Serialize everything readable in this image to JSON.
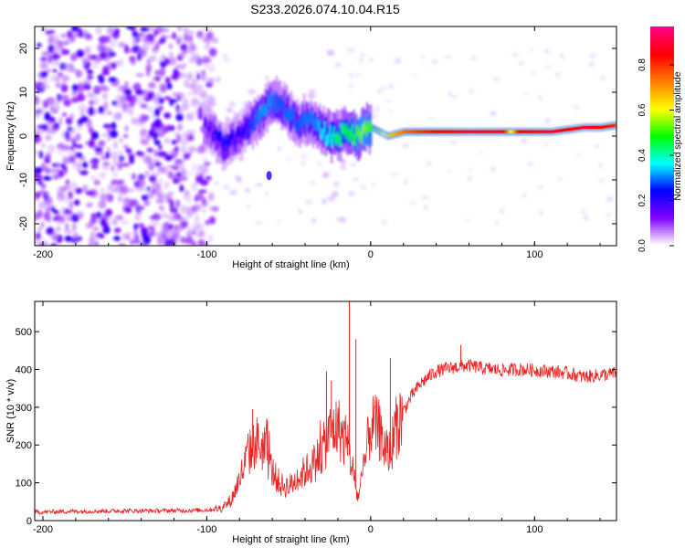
{
  "title": "S233.2026.074.10.04.R15",
  "chart_data": [
    {
      "type": "heatmap",
      "title": "S233.2026.074.10.04.R15",
      "xlabel": "Height of straight line (km)",
      "ylabel": "Frequency (Hz)",
      "xlim": [
        -205,
        150
      ],
      "ylim": [
        -25,
        25
      ],
      "xticks": [
        -200,
        -100,
        0,
        100
      ],
      "yticks": [
        -20,
        -10,
        0,
        10,
        20
      ],
      "xtick_labels": [
        "-200",
        "-100",
        "0",
        "100"
      ],
      "ytick_labels": [
        "-20",
        "-10",
        "0",
        "10",
        "20"
      ],
      "colorbar": {
        "label": "Normalized spectral amplitude",
        "range": [
          0,
          0.97
        ],
        "ticks": [
          0,
          0.2,
          0.4,
          0.6,
          0.8
        ],
        "tick_labels": [
          "0.0",
          "0.2",
          "0.4",
          "0.6",
          "0.8"
        ],
        "colors": [
          "#ffffff",
          "#8000ff",
          "#0000ff",
          "#00ffff",
          "#00ff00",
          "#ffff00",
          "#ff8000",
          "#ff0000",
          "#ff0080"
        ]
      },
      "ridge": {
        "x": [
          -100,
          -95,
          -90,
          -85,
          -80,
          -75,
          -70,
          -65,
          -60,
          -55,
          -50,
          -45,
          -40,
          -35,
          -30,
          -25,
          -20,
          -15,
          -10,
          -5,
          0,
          5,
          10,
          20,
          40,
          60,
          80,
          85,
          90,
          100,
          110,
          120,
          130,
          140,
          150
        ],
        "freq": [
          2,
          0,
          -2,
          -1,
          0,
          2,
          4,
          6,
          8,
          7,
          5,
          3,
          4,
          3,
          1,
          0,
          0,
          1,
          0,
          1,
          2,
          1,
          0,
          1,
          1,
          1,
          1,
          1,
          1,
          1,
          1,
          1.5,
          2,
          2,
          2.5
        ],
        "amplitude": [
          0.15,
          0.2,
          0.25,
          0.22,
          0.2,
          0.25,
          0.3,
          0.32,
          0.3,
          0.28,
          0.3,
          0.28,
          0.3,
          0.3,
          0.35,
          0.38,
          0.45,
          0.45,
          0.5,
          0.55,
          0.5,
          0.55,
          0.65,
          0.75,
          0.85,
          0.9,
          0.88,
          0.6,
          0.85,
          0.88,
          0.9,
          0.85,
          0.9,
          0.85,
          0.8
        ]
      }
    },
    {
      "type": "line",
      "xlabel": "Height of straight line (km)",
      "ylabel": "SNR (10 * v/v)",
      "xlim": [
        -205,
        150
      ],
      "ylim": [
        0,
        580
      ],
      "xticks": [
        -200,
        -100,
        0,
        100
      ],
      "yticks": [
        0,
        100,
        200,
        300,
        400,
        500
      ],
      "xtick_labels": [
        "-200",
        "-100",
        "0",
        "100"
      ],
      "ytick_labels": [
        "0",
        "100",
        "200",
        "300",
        "400",
        "500"
      ],
      "color": "#ee2222",
      "x": [
        -205,
        -190,
        -170,
        -150,
        -130,
        -110,
        -100,
        -95,
        -90,
        -85,
        -80,
        -75,
        -70,
        -65,
        -60,
        -55,
        -50,
        -45,
        -40,
        -35,
        -30,
        -25,
        -20,
        -15,
        -12,
        -10,
        -8,
        -5,
        -2,
        0,
        2,
        5,
        8,
        10,
        12,
        15,
        20,
        25,
        30,
        35,
        40,
        50,
        60,
        70,
        80,
        90,
        100,
        110,
        120,
        130,
        140,
        150
      ],
      "y": [
        22,
        24,
        25,
        26,
        26,
        27,
        28,
        30,
        35,
        55,
        110,
        170,
        210,
        190,
        130,
        95,
        90,
        110,
        130,
        150,
        180,
        230,
        250,
        200,
        160,
        110,
        60,
        110,
        200,
        250,
        250,
        240,
        200,
        170,
        185,
        240,
        290,
        330,
        360,
        380,
        395,
        405,
        410,
        402,
        398,
        400,
        398,
        395,
        390,
        380,
        385,
        390
      ],
      "spikes": [
        {
          "x": -72,
          "y": 295
        },
        {
          "x": -63,
          "y": 265
        },
        {
          "x": -27,
          "y": 395
        },
        {
          "x": -24,
          "y": 370
        },
        {
          "x": -13,
          "y": 580
        },
        {
          "x": -9,
          "y": 480
        },
        {
          "x": 12,
          "y": 430
        },
        {
          "x": 55,
          "y": 465
        }
      ]
    }
  ]
}
